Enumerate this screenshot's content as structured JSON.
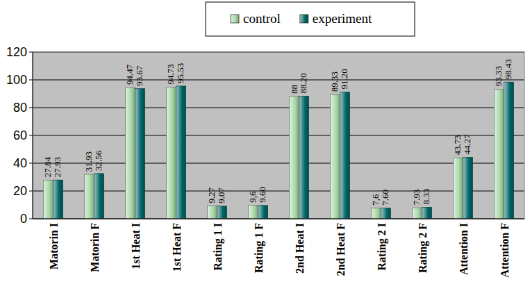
{
  "chart_data": {
    "type": "bar",
    "categories": [
      "Matorin I",
      "Matorin F",
      "1st Heat I",
      "1st Heat F",
      "Rating 1 I",
      "Rating 1 F",
      "2nd Heat I",
      "2nd Heat F",
      "Rating 2 I",
      "Rating 2 F",
      "Attention I",
      "Attention F"
    ],
    "series": [
      {
        "name": "control",
        "color": "#a8d8a8",
        "values": [
          27.84,
          31.93,
          94.47,
          94.73,
          9.27,
          9.6,
          88,
          89.33,
          7.6,
          7.93,
          43.73,
          93.33
        ],
        "value_labels": [
          "27.84",
          "31.93",
          "94.47",
          "94.73",
          "9.27",
          "9,6",
          "88",
          "89.33",
          "7,6",
          "7.93",
          "43.73",
          "93.33"
        ]
      },
      {
        "name": "experiment",
        "color": "#006666",
        "values": [
          27.93,
          32.56,
          93.67,
          95.53,
          9.07,
          9.6,
          88.2,
          91.2,
          7.6,
          8.33,
          44.27,
          98.43
        ],
        "value_labels": [
          "27.93",
          "32.56",
          "93.67",
          "95.53",
          "9.07",
          "9.60",
          "88.20",
          "91.20",
          "7.60",
          "8.33",
          "44.27",
          "98.43"
        ]
      }
    ],
    "ylim": [
      0,
      120
    ],
    "yticks": [
      0,
      20,
      40,
      60,
      80,
      100,
      120
    ],
    "grid": true,
    "legend": "top",
    "data_labels": true
  }
}
